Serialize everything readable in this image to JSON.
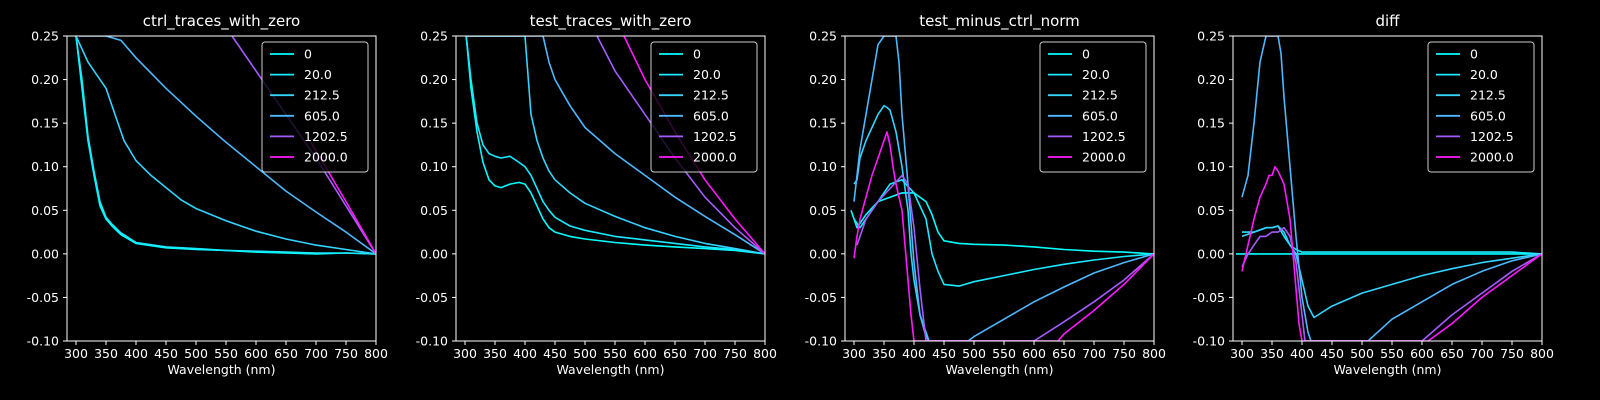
{
  "chart_data": [
    {
      "type": "line",
      "title": "ctrl_traces_with_zero",
      "xlabel": "Wavelength (nm)",
      "ylabel": "",
      "xlim": [
        285,
        800
      ],
      "ylim": [
        -0.1,
        0.25
      ],
      "xticks": [
        300,
        350,
        400,
        450,
        500,
        550,
        600,
        650,
        700,
        750,
        800
      ],
      "yticks": [
        -0.1,
        -0.05,
        0.0,
        0.05,
        0.1,
        0.15,
        0.2,
        0.25
      ],
      "legend": "top-right",
      "grid": false,
      "series": [
        {
          "name": "0",
          "color": "#00ffff",
          "x": [
            300,
            310,
            320,
            330,
            340,
            350,
            360,
            375,
            400,
            450,
            500,
            550,
            600,
            650,
            700,
            750,
            800
          ],
          "y": [
            0.25,
            0.19,
            0.13,
            0.09,
            0.055,
            0.04,
            0.032,
            0.022,
            0.012,
            0.007,
            0.005,
            0.004,
            0.002,
            0.001,
            0.0,
            0.001,
            0.0
          ]
        },
        {
          "name": "20.0",
          "color": "#19eaff",
          "x": [
            300,
            310,
            320,
            330,
            340,
            350,
            360,
            375,
            400,
            450,
            500,
            550,
            600,
            650,
            700,
            750,
            800
          ],
          "y": [
            0.25,
            0.2,
            0.135,
            0.095,
            0.06,
            0.042,
            0.034,
            0.024,
            0.013,
            0.008,
            0.006,
            0.004,
            0.003,
            0.002,
            0.001,
            0.001,
            0.0
          ]
        },
        {
          "name": "212.5",
          "color": "#33d4ff",
          "x": [
            300,
            320,
            340,
            350,
            360,
            380,
            400,
            425,
            450,
            475,
            500,
            550,
            600,
            650,
            700,
            750,
            800
          ],
          "y": [
            0.25,
            0.22,
            0.2,
            0.19,
            0.17,
            0.13,
            0.107,
            0.09,
            0.076,
            0.062,
            0.052,
            0.038,
            0.026,
            0.017,
            0.01,
            0.005,
            0.0
          ]
        },
        {
          "name": "605.0",
          "color": "#4db8ff",
          "x": [
            305,
            325,
            350,
            375,
            400,
            450,
            500,
            550,
            600,
            650,
            700,
            750,
            800
          ],
          "y": [
            0.25,
            0.25,
            0.25,
            0.245,
            0.225,
            0.19,
            0.158,
            0.128,
            0.1,
            0.072,
            0.048,
            0.025,
            0.0
          ]
        },
        {
          "name": "1202.5",
          "color": "#a55cff",
          "x": [
            560,
            600,
            650,
            700,
            750,
            800
          ],
          "y": [
            0.25,
            0.21,
            0.16,
            0.11,
            0.055,
            0.0
          ]
        },
        {
          "name": "2000.0",
          "color": "#ff1aff",
          "x": [
            690,
            720,
            750,
            775,
            800
          ],
          "y": [
            0.13,
            0.095,
            0.06,
            0.03,
            0.0
          ]
        }
      ]
    },
    {
      "type": "line",
      "title": "test_traces_with_zero",
      "xlabel": "Wavelength (nm)",
      "ylabel": "",
      "xlim": [
        285,
        800
      ],
      "ylim": [
        -0.1,
        0.25
      ],
      "xticks": [
        300,
        350,
        400,
        450,
        500,
        550,
        600,
        650,
        700,
        750,
        800
      ],
      "yticks": [
        -0.1,
        -0.05,
        0.0,
        0.05,
        0.1,
        0.15,
        0.2,
        0.25
      ],
      "legend": "top-right",
      "grid": false,
      "series": [
        {
          "name": "0",
          "color": "#00ffff",
          "x": [
            302,
            310,
            320,
            330,
            340,
            350,
            360,
            375,
            390,
            400,
            410,
            420,
            430,
            440,
            450,
            475,
            500,
            550,
            600,
            650,
            700,
            750,
            800
          ],
          "y": [
            0.25,
            0.19,
            0.14,
            0.105,
            0.085,
            0.078,
            0.076,
            0.08,
            0.082,
            0.08,
            0.07,
            0.055,
            0.04,
            0.03,
            0.025,
            0.02,
            0.017,
            0.013,
            0.01,
            0.008,
            0.006,
            0.004,
            0.0
          ]
        },
        {
          "name": "20.0",
          "color": "#19eaff",
          "x": [
            302,
            310,
            320,
            330,
            340,
            350,
            360,
            375,
            390,
            400,
            410,
            420,
            430,
            440,
            450,
            475,
            500,
            550,
            600,
            650,
            700,
            750,
            800
          ],
          "y": [
            0.25,
            0.2,
            0.15,
            0.125,
            0.115,
            0.112,
            0.11,
            0.112,
            0.105,
            0.1,
            0.09,
            0.075,
            0.06,
            0.05,
            0.042,
            0.032,
            0.027,
            0.02,
            0.016,
            0.012,
            0.008,
            0.005,
            0.0
          ]
        },
        {
          "name": "212.5",
          "color": "#33d4ff",
          "x": [
            300,
            350,
            400,
            410,
            420,
            430,
            440,
            450,
            475,
            500,
            550,
            600,
            650,
            700,
            750,
            800
          ],
          "y": [
            0.25,
            0.25,
            0.25,
            0.16,
            0.13,
            0.11,
            0.095,
            0.085,
            0.07,
            0.058,
            0.043,
            0.03,
            0.02,
            0.012,
            0.006,
            0.0
          ]
        },
        {
          "name": "605.0",
          "color": "#4db8ff",
          "x": [
            300,
            400,
            430,
            440,
            450,
            475,
            500,
            550,
            600,
            650,
            700,
            750,
            800
          ],
          "y": [
            0.25,
            0.25,
            0.25,
            0.22,
            0.2,
            0.17,
            0.145,
            0.115,
            0.09,
            0.065,
            0.043,
            0.022,
            0.0
          ]
        },
        {
          "name": "1202.5",
          "color": "#a55cff",
          "x": [
            520,
            550,
            600,
            650,
            700,
            750,
            800
          ],
          "y": [
            0.25,
            0.21,
            0.16,
            0.11,
            0.065,
            0.03,
            0.0
          ]
        },
        {
          "name": "2000.0",
          "color": "#ff1aff",
          "x": [
            565,
            600,
            650,
            700,
            750,
            800
          ],
          "y": [
            0.25,
            0.2,
            0.14,
            0.085,
            0.04,
            0.0
          ]
        }
      ]
    },
    {
      "type": "line",
      "title": "test_minus_ctrl_norm",
      "xlabel": "Wavelength (nm)",
      "ylabel": "",
      "xlim": [
        285,
        800
      ],
      "ylim": [
        -0.1,
        0.25
      ],
      "xticks": [
        300,
        350,
        400,
        450,
        500,
        550,
        600,
        650,
        700,
        750,
        800
      ],
      "yticks": [
        -0.1,
        -0.05,
        0.0,
        0.05,
        0.1,
        0.15,
        0.2,
        0.25
      ],
      "legend": "top-right",
      "grid": false,
      "series": [
        {
          "name": "0",
          "color": "#00ffff",
          "x": [
            295,
            305,
            320,
            340,
            360,
            380,
            400,
            420,
            430,
            440,
            450,
            475,
            500,
            550,
            600,
            650,
            700,
            750,
            800
          ],
          "y": [
            0.05,
            0.03,
            0.045,
            0.06,
            0.065,
            0.07,
            0.07,
            0.06,
            0.045,
            0.025,
            0.015,
            0.012,
            0.011,
            0.01,
            0.008,
            0.005,
            0.003,
            0.002,
            0.0
          ]
        },
        {
          "name": "20.0",
          "color": "#19eaff",
          "x": [
            300,
            310,
            320,
            340,
            360,
            380,
            400,
            420,
            430,
            440,
            450,
            475,
            500,
            550,
            600,
            650,
            700,
            750,
            800
          ],
          "y": [
            0.04,
            0.03,
            0.04,
            0.06,
            0.08,
            0.085,
            0.07,
            0.04,
            0.0,
            -0.02,
            -0.035,
            -0.037,
            -0.032,
            -0.025,
            -0.018,
            -0.012,
            -0.007,
            -0.003,
            0.0
          ]
        },
        {
          "name": "212.5",
          "color": "#33d4ff",
          "x": [
            300,
            305,
            310,
            320,
            330,
            340,
            350,
            355,
            360,
            370,
            380,
            390,
            395,
            400,
            410,
            420,
            425
          ],
          "y": [
            0.08,
            0.085,
            0.11,
            0.13,
            0.145,
            0.16,
            0.17,
            0.168,
            0.165,
            0.14,
            0.1,
            0.05,
            0.0,
            -0.03,
            -0.07,
            -0.09,
            -0.1
          ]
        },
        {
          "name": "605.0",
          "color": "#4db8ff",
          "x": [
            300,
            310,
            320,
            330,
            340,
            350,
            355,
            360,
            370,
            375,
            380,
            390,
            400,
            410,
            420,
            425,
            490,
            500,
            550,
            600,
            650,
            700,
            750,
            800
          ],
          "y": [
            0.06,
            0.12,
            0.16,
            0.2,
            0.24,
            0.25,
            0.25,
            0.25,
            0.25,
            0.22,
            0.16,
            0.08,
            -0.01,
            -0.07,
            -0.095,
            -0.1,
            -0.1,
            -0.095,
            -0.075,
            -0.055,
            -0.038,
            -0.022,
            -0.01,
            0.0
          ]
        },
        {
          "name": "1202.5",
          "color": "#a55cff",
          "x": [
            305,
            320,
            340,
            360,
            380,
            390,
            400,
            410,
            420,
            600,
            650,
            700,
            750,
            800
          ],
          "y": [
            0.01,
            0.04,
            0.06,
            0.075,
            0.09,
            0.08,
            0.03,
            -0.04,
            -0.1,
            -0.1,
            -0.078,
            -0.055,
            -0.03,
            0.0
          ]
        },
        {
          "name": "2000.0",
          "color": "#ff1aff",
          "x": [
            300,
            305,
            310,
            320,
            330,
            340,
            350,
            355,
            360,
            365,
            370,
            380,
            385,
            390,
            395,
            400,
            640,
            650,
            700,
            750,
            800
          ],
          "y": [
            -0.005,
            0.02,
            0.04,
            0.065,
            0.09,
            0.11,
            0.13,
            0.14,
            0.125,
            0.1,
            0.08,
            0.05,
            0.01,
            -0.03,
            -0.07,
            -0.1,
            -0.1,
            -0.092,
            -0.065,
            -0.035,
            0.0
          ]
        }
      ]
    },
    {
      "type": "line",
      "title": "diff",
      "xlabel": "Wavelength (nm)",
      "ylabel": "",
      "xlim": [
        285,
        800
      ],
      "ylim": [
        -0.1,
        0.25
      ],
      "xticks": [
        300,
        350,
        400,
        450,
        500,
        550,
        600,
        650,
        700,
        750,
        800
      ],
      "yticks": [
        -0.1,
        -0.05,
        0.0,
        0.05,
        0.1,
        0.15,
        0.2,
        0.25
      ],
      "legend": "top-right",
      "grid": false,
      "series": [
        {
          "name": "0",
          "color": "#00ffff",
          "x": [
            290,
            300,
            350,
            400,
            450,
            500,
            550,
            600,
            650,
            700,
            750,
            800
          ],
          "y": [
            0.0,
            0.0,
            0.0,
            0.0,
            0.0,
            0.0,
            0.0,
            0.0,
            0.0,
            0.0,
            0.0,
            0.0
          ]
        },
        {
          "name": "20.0",
          "color": "#19eaff",
          "x": [
            300,
            320,
            340,
            350,
            360,
            370,
            380,
            390,
            400,
            420,
            450,
            500,
            550,
            600,
            650,
            700,
            750,
            800
          ],
          "y": [
            0.025,
            0.025,
            0.03,
            0.03,
            0.032,
            0.02,
            0.01,
            0.005,
            0.002,
            0.002,
            0.002,
            0.002,
            0.002,
            0.002,
            0.002,
            0.002,
            0.002,
            0.0
          ]
        },
        {
          "name": "212.5",
          "color": "#33d4ff",
          "x": [
            300,
            320,
            340,
            350,
            360,
            370,
            380,
            390,
            400,
            410,
            420,
            450,
            500,
            550,
            600,
            650,
            700,
            750,
            800
          ],
          "y": [
            0.02,
            0.025,
            0.03,
            0.03,
            0.032,
            0.025,
            0.01,
            0.0,
            -0.03,
            -0.06,
            -0.073,
            -0.06,
            -0.045,
            -0.035,
            -0.025,
            -0.017,
            -0.01,
            -0.005,
            0.0
          ]
        },
        {
          "name": "605.0",
          "color": "#4db8ff",
          "x": [
            300,
            310,
            320,
            330,
            340,
            350,
            355,
            360,
            365,
            370,
            380,
            390,
            400,
            410,
            415,
            510,
            550,
            600,
            650,
            700,
            750,
            800
          ],
          "y": [
            0.065,
            0.09,
            0.15,
            0.22,
            0.25,
            0.25,
            0.25,
            0.25,
            0.23,
            0.18,
            0.1,
            0.02,
            -0.05,
            -0.09,
            -0.1,
            -0.1,
            -0.075,
            -0.055,
            -0.035,
            -0.02,
            -0.008,
            0.0
          ]
        },
        {
          "name": "1202.5",
          "color": "#a55cff",
          "x": [
            300,
            310,
            320,
            330,
            340,
            350,
            360,
            370,
            380,
            390,
            400,
            405,
            600,
            650,
            700,
            750,
            800
          ],
          "y": [
            -0.015,
            0.0,
            0.01,
            0.02,
            0.02,
            0.025,
            0.025,
            0.03,
            0.02,
            -0.01,
            -0.07,
            -0.1,
            -0.1,
            -0.07,
            -0.045,
            -0.02,
            0.0
          ]
        },
        {
          "name": "2000.0",
          "color": "#ff1aff",
          "x": [
            300,
            310,
            320,
            330,
            340,
            345,
            350,
            355,
            360,
            370,
            375,
            380,
            385,
            390,
            395,
            400,
            610,
            650,
            700,
            750,
            800
          ],
          "y": [
            -0.02,
            0.01,
            0.04,
            0.065,
            0.08,
            0.09,
            0.09,
            0.1,
            0.095,
            0.08,
            0.06,
            0.04,
            0.0,
            -0.04,
            -0.08,
            -0.1,
            -0.1,
            -0.08,
            -0.05,
            -0.025,
            0.0
          ]
        }
      ]
    }
  ]
}
